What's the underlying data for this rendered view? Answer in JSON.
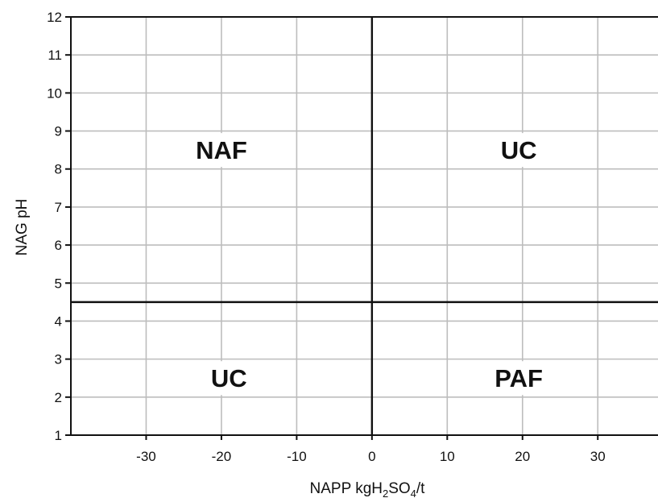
{
  "chart_data": {
    "type": "scatter",
    "title": "",
    "xlabel": "NAPP kgH2SO4/t",
    "xlabel_parts": {
      "main": "NAPP kgH",
      "sub1": "2",
      "mid": "SO",
      "sub2": "4",
      "tail": "/t"
    },
    "ylabel": "NAG pH",
    "xlim": [
      -40,
      38
    ],
    "ylim": [
      1,
      12
    ],
    "x_ticks": [
      -30,
      -20,
      -10,
      0,
      10,
      20,
      30
    ],
    "y_ticks": [
      1,
      2,
      3,
      4,
      5,
      6,
      7,
      8,
      9,
      10,
      11,
      12
    ],
    "grid": true,
    "threshold_lines": {
      "napp": 0,
      "nag_ph": 4.5
    },
    "series": [],
    "regions": [
      {
        "label": "NAF",
        "x": -20,
        "y": 8.5
      },
      {
        "label": "UC",
        "x": 19.5,
        "y": 8.5
      },
      {
        "label": "UC",
        "x": -19,
        "y": 2.5
      },
      {
        "label": "PAF",
        "x": 19.5,
        "y": 2.5
      }
    ],
    "colors": {
      "grid": "#bdbdbd",
      "axis": "#111111",
      "threshold": "#111111",
      "label_bg": "#ffffff"
    }
  }
}
